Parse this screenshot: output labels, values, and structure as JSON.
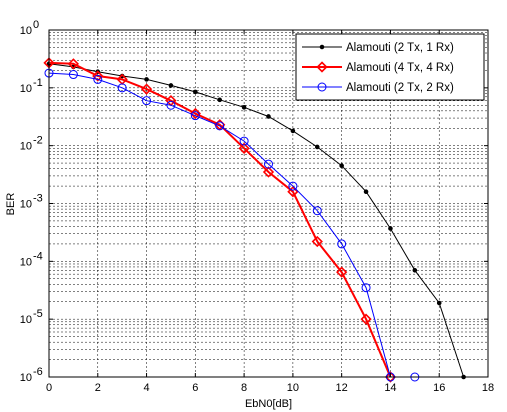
{
  "chart_data": {
    "type": "line",
    "xlabel": "EbN0[dB]",
    "ylabel": "BER",
    "xlim": [
      0,
      18
    ],
    "ylim": [
      1e-06,
      1
    ],
    "yscale": "log",
    "grid": true,
    "legend_position": "top-right",
    "x_ticks": [
      "0",
      "2",
      "4",
      "6",
      "8",
      "10",
      "12",
      "14",
      "16",
      "18"
    ],
    "y_ticks": [
      {
        "base": "10",
        "exp": "0"
      },
      {
        "base": "10",
        "exp": "-1"
      },
      {
        "base": "10",
        "exp": "-2"
      },
      {
        "base": "10",
        "exp": "-3"
      },
      {
        "base": "10",
        "exp": "-4"
      },
      {
        "base": "10",
        "exp": "-5"
      },
      {
        "base": "10",
        "exp": "-6"
      }
    ],
    "series": [
      {
        "name": "Alamouti (2 Tx, 1 Rx)",
        "color": "#000000",
        "marker": "dot",
        "x": [
          0,
          1,
          2,
          3,
          4,
          5,
          6,
          7,
          8,
          9,
          10,
          11,
          12,
          13,
          14,
          15,
          16,
          17
        ],
        "y": [
          0.26,
          0.23,
          0.19,
          0.16,
          0.14,
          0.11,
          0.085,
          0.062,
          0.046,
          0.032,
          0.018,
          0.0095,
          0.0045,
          0.0016,
          0.00037,
          7e-05,
          1.9e-05,
          1e-06
        ]
      },
      {
        "name": "Alamouti (4 Tx, 4 Rx)",
        "color": "#ff0000",
        "marker": "diamond",
        "x": [
          0,
          1,
          2,
          3,
          4,
          5,
          6,
          7,
          8,
          9,
          10,
          11,
          12,
          13,
          14
        ],
        "y": [
          0.27,
          0.26,
          0.16,
          0.14,
          0.095,
          0.06,
          0.036,
          0.023,
          0.009,
          0.0035,
          0.0016,
          0.00022,
          6.5e-05,
          1e-05,
          1e-06
        ]
      },
      {
        "name": "Alamouti (2 Tx, 2 Rx)",
        "color": "#0000ff",
        "marker": "circle",
        "x": [
          0,
          1,
          2,
          3,
          4,
          5,
          6,
          7,
          8,
          9,
          10,
          11,
          12,
          13,
          14,
          15
        ],
        "y": [
          0.18,
          0.17,
          0.14,
          0.1,
          0.06,
          0.05,
          0.033,
          0.022,
          0.012,
          0.0048,
          0.002,
          0.00075,
          0.0002,
          3.5e-05,
          1e-06,
          1e-06
        ]
      }
    ]
  }
}
